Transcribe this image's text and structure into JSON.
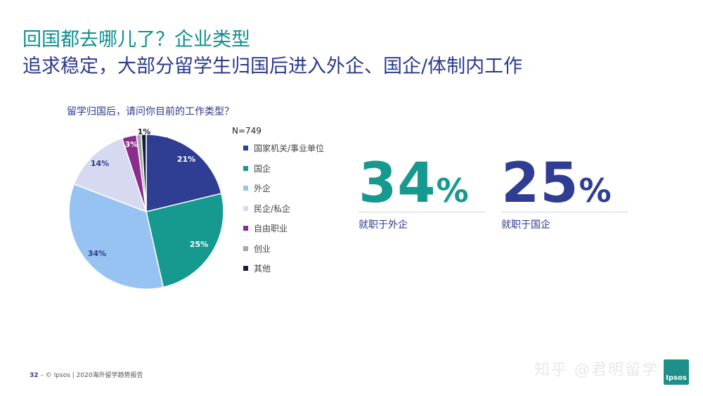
{
  "header": {
    "title": "回国都去哪儿了？企业类型",
    "subtitle": "追求稳定，大部分留学生归国后进入外企、国企/体制内工作"
  },
  "chart_data": {
    "type": "pie",
    "title": "留学归国后，请问你目前的工作类型？",
    "sample_size": "N=749",
    "legend_position": "right",
    "slices": [
      {
        "label": "国家机关/事业单位",
        "value": 21,
        "display": "21%",
        "color": "#2f3e93"
      },
      {
        "label": "国企",
        "value": 25,
        "display": "25%",
        "color": "#16998f"
      },
      {
        "label": "外企",
        "value": 34,
        "display": "34%",
        "color": "#96c3f2"
      },
      {
        "label": "民企/私企",
        "value": 14,
        "display": "14%",
        "color": "#d6d9ef"
      },
      {
        "label": "自由职业",
        "value": 3,
        "display": "3%",
        "color": "#8a2d8e"
      },
      {
        "label": "创业",
        "value": 1,
        "display": "1%",
        "color": "#a9a9a9"
      },
      {
        "label": "其他",
        "value": 1,
        "display": "1%",
        "color": "#10203a"
      }
    ]
  },
  "stats": [
    {
      "number": "34",
      "unit": "%",
      "label": "就职于外企",
      "color": "#16998f"
    },
    {
      "number": "25",
      "unit": "%",
      "label": "就职于国企",
      "color": "#2f3e93"
    }
  ],
  "footer": {
    "page": "32",
    "separator": "–",
    "source": "© Ipsos | 2020海外留学趋势报告"
  },
  "watermark": "知乎 @君明留学",
  "logo_text": "Ipsos"
}
